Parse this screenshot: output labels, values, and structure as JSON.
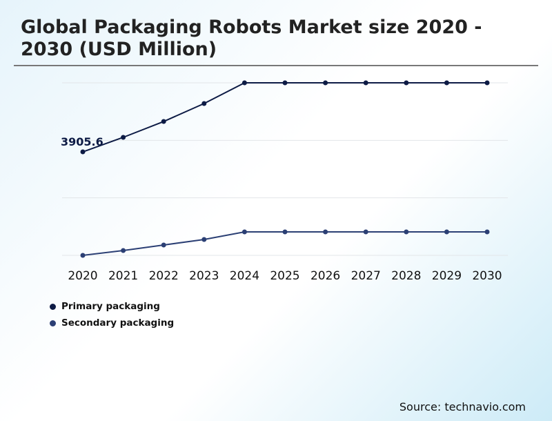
{
  "title": "Global Packaging Robots Market size 2020 - 2030 (USD Million)",
  "source": "Source: technavio.com",
  "chart_data": {
    "type": "line",
    "title": "Global Packaging Robots Market size 2020 - 2030 (USD Million)",
    "categories": [
      "2020",
      "2021",
      "2022",
      "2023",
      "2024",
      "2025",
      "2026",
      "2027",
      "2028",
      "2029",
      "2030"
    ],
    "series": [
      {
        "name": "Primary packaging",
        "color": "#0d1b45",
        "values": [
          3905.6,
          4453,
          5051,
          5729,
          6510,
          6510,
          6510,
          6510,
          6510,
          6510,
          6510
        ]
      },
      {
        "name": "Secondary packaging",
        "color": "#2b3f74",
        "values": [
          0,
          182,
          391,
          599,
          885,
          885,
          885,
          885,
          885,
          885,
          885
        ]
      }
    ],
    "annotations": [
      {
        "series": "Primary packaging",
        "category": "2020",
        "text": "3905.6"
      }
    ],
    "ylim": [
      0,
      6510
    ],
    "grid": true,
    "y_tick_labels_shown": false,
    "legend": "bottom-left"
  }
}
